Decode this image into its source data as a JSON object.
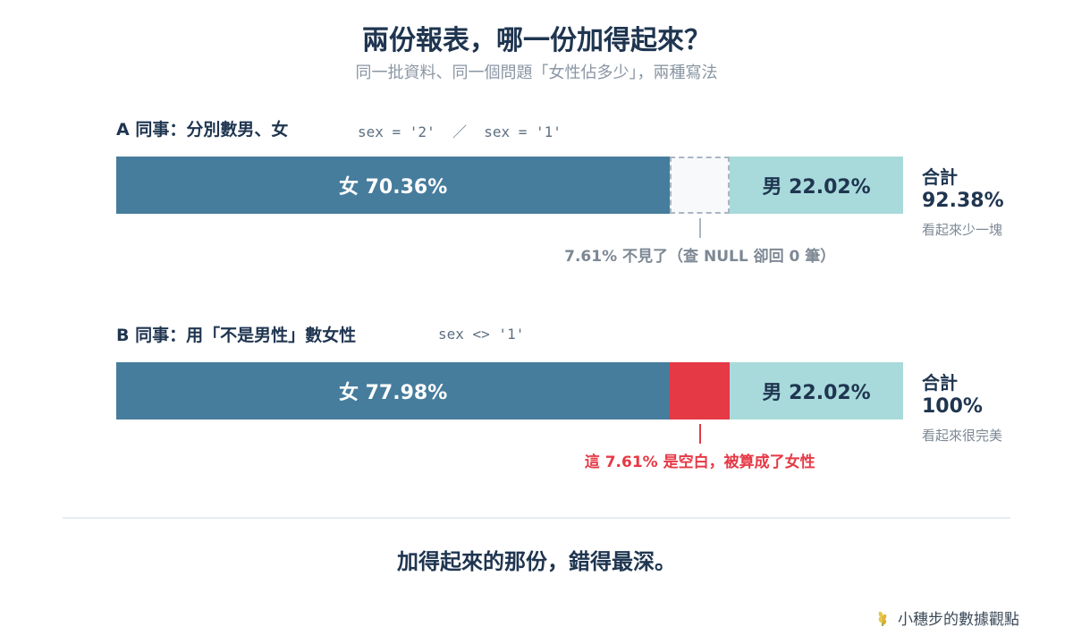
{
  "title": "兩份報表，哪一份加得起來？",
  "subtitle": "同一批資料、同一個問題「女性佔多少」，兩種寫法",
  "colors": {
    "female": "#467c9c",
    "male": "#a8dadb",
    "missing_border": "#a9b6c3",
    "blank": "#e63946",
    "annotation_gray": "#7d8894",
    "annotation_red": "#e63946"
  },
  "chart_data": [
    {
      "type": "bar",
      "orientation": "horizontal-stacked",
      "label": "A 同事：分別數男、女",
      "code": "sex = '2'  ／  sex = '1'",
      "segments": [
        {
          "name": "女",
          "value": 70.36,
          "label": "女 70.36%",
          "style": "female"
        },
        {
          "name": "missing",
          "value": 7.61,
          "label": "",
          "style": "missing"
        },
        {
          "name": "男",
          "value": 22.02,
          "label": "男 22.02%",
          "style": "male"
        }
      ],
      "total_label": "合計",
      "total_value": "92.38%",
      "total_note": "看起來少一塊",
      "annotation": "7.61% 不見了（查 NULL 卻回 0 筆）",
      "annotation_color": "gray"
    },
    {
      "type": "bar",
      "orientation": "horizontal-stacked",
      "label": "B 同事：用「不是男性」數女性",
      "code": "sex <> '1'",
      "segments": [
        {
          "name": "女",
          "value": 70.36,
          "label": "女 77.98%",
          "style": "female"
        },
        {
          "name": "blank",
          "value": 7.61,
          "label": "",
          "style": "blank"
        },
        {
          "name": "男",
          "value": 22.02,
          "label": "男 22.02%",
          "style": "male"
        }
      ],
      "total_label": "合計",
      "total_value": "100%",
      "total_note": "看起來很完美",
      "annotation": "這 7.61% 是空白，被算成了女性",
      "annotation_color": "red"
    }
  ],
  "conclusion": "加得起來的那份，錯得最深。",
  "brand": {
    "name": "小穗步的數據觀點",
    "icon": "wheat-icon"
  }
}
